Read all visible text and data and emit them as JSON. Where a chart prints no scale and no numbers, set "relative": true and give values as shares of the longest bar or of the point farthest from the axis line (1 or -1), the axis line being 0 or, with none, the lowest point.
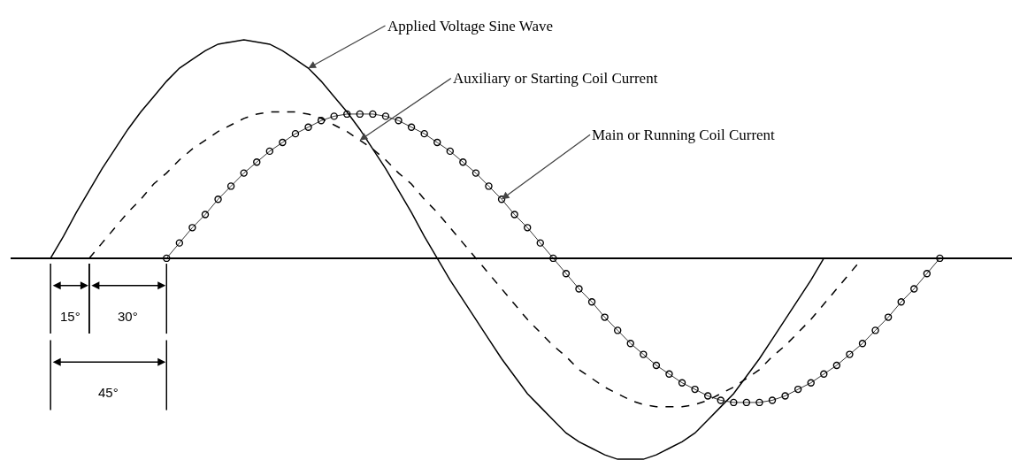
{
  "chart_data": {
    "type": "line",
    "relative": true,
    "legend": false,
    "categories": [
      null,
      null,
      null,
      null,
      null,
      null,
      null,
      null,
      null,
      null,
      null,
      null,
      null,
      null,
      null,
      null,
      null,
      null,
      null,
      null,
      null,
      null,
      null,
      null,
      null,
      null,
      null,
      null,
      null,
      null,
      null,
      null,
      null,
      null,
      null,
      null,
      null,
      null,
      null,
      null,
      null,
      null,
      null,
      null,
      null,
      null,
      null,
      null,
      null,
      null,
      null,
      null,
      null,
      null,
      null,
      null,
      null,
      null,
      null,
      null,
      null,
      null,
      null,
      null,
      null,
      null,
      null,
      null,
      null,
      null,
      null,
      null,
      null,
      null,
      null,
      null,
      null,
      null
    ],
    "series": [
      {
        "name": "Applied Voltage Sine Wave",
        "color": "#000000",
        "line_style": "solid",
        "values": [
          null,
          null,
          null,
          0,
          0.1,
          0.21,
          0.31,
          0.41,
          0.5,
          0.59,
          0.67,
          0.74,
          0.81,
          0.87,
          0.91,
          0.95,
          0.98,
          0.99,
          1,
          0.99,
          0.98,
          0.95,
          0.91,
          0.87,
          0.81,
          0.74,
          0.67,
          0.59,
          0.5,
          0.41,
          0.31,
          0.21,
          0.1,
          0,
          -0.1,
          -0.19,
          -0.28,
          -0.37,
          -0.46,
          -0.54,
          -0.62,
          -0.68,
          -0.74,
          -0.8,
          -0.84,
          -0.87,
          -0.9,
          -0.92,
          -0.92,
          -0.92,
          -0.9,
          -0.87,
          -0.84,
          -0.8,
          -0.74,
          -0.68,
          -0.62,
          -0.54,
          -0.46,
          -0.37,
          -0.28,
          -0.19,
          -0.1,
          0,
          null,
          null,
          null,
          null,
          null,
          null,
          null,
          null,
          null,
          null,
          null,
          null,
          null,
          null
        ]
      },
      {
        "name": "Auxiliary or Starting Coil Current",
        "color": "#000000",
        "line_style": "dashed",
        "values": [
          null,
          null,
          null,
          null,
          null,
          null,
          0,
          0.07,
          0.14,
          0.21,
          0.27,
          0.34,
          0.39,
          0.45,
          0.5,
          0.54,
          0.58,
          0.61,
          0.64,
          0.66,
          0.67,
          0.67,
          0.67,
          0.66,
          0.64,
          0.61,
          0.58,
          0.54,
          0.5,
          0.45,
          0.39,
          0.34,
          0.27,
          0.21,
          0.14,
          0.07,
          0,
          -0.07,
          -0.14,
          -0.21,
          -0.28,
          -0.34,
          -0.4,
          -0.45,
          -0.51,
          -0.55,
          -0.59,
          -0.62,
          -0.65,
          -0.67,
          -0.68,
          -0.68,
          -0.68,
          -0.67,
          -0.65,
          -0.62,
          -0.59,
          -0.55,
          -0.51,
          -0.45,
          -0.4,
          -0.34,
          -0.28,
          -0.21,
          -0.14,
          -0.07,
          0,
          null,
          null,
          null,
          null,
          null,
          null,
          null,
          null,
          null,
          null,
          null
        ]
      },
      {
        "name": "Main or Running Coil Current",
        "color": "#000000",
        "line_style": "solid",
        "marker": "circle",
        "values": [
          null,
          null,
          null,
          null,
          null,
          null,
          null,
          null,
          null,
          null,
          null,
          null,
          0,
          0.07,
          0.14,
          0.2,
          0.27,
          0.33,
          0.39,
          0.44,
          0.49,
          0.53,
          0.57,
          0.6,
          0.63,
          0.65,
          0.66,
          0.66,
          0.66,
          0.65,
          0.63,
          0.6,
          0.57,
          0.53,
          0.49,
          0.44,
          0.39,
          0.33,
          0.27,
          0.2,
          0.14,
          0.07,
          0,
          -0.07,
          -0.14,
          -0.2,
          -0.27,
          -0.33,
          -0.39,
          -0.44,
          -0.49,
          -0.53,
          -0.57,
          -0.6,
          -0.63,
          -0.65,
          -0.66,
          -0.66,
          -0.66,
          -0.65,
          -0.63,
          -0.6,
          -0.57,
          -0.53,
          -0.49,
          -0.44,
          -0.39,
          -0.33,
          -0.27,
          -0.2,
          -0.14,
          -0.07,
          0,
          null,
          null,
          null,
          null,
          null
        ]
      }
    ],
    "annotations": [
      "15°",
      "30°",
      "45°"
    ]
  }
}
